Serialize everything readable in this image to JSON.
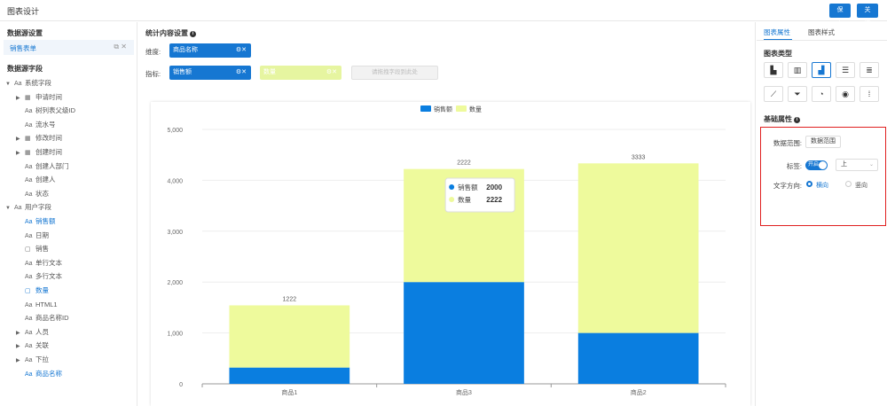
{
  "header": {
    "title": "图表设计",
    "save_label": "保存",
    "close_label": "关闭"
  },
  "left_panel": {
    "datasource_title": "数据源设置",
    "datasource_item": "销售表单",
    "datasource_ops": "⧉ ✕",
    "fields_title": "数据源字段",
    "tree": [
      {
        "label": "系统字段",
        "type": "Aa",
        "arrow": "▼",
        "level": 0,
        "blue": false
      },
      {
        "label": "申请时间",
        "type": "▦",
        "arrow": "▶",
        "level": 1,
        "blue": false
      },
      {
        "label": "树列表父级ID",
        "type": "Aa",
        "arrow": "",
        "level": 1,
        "blue": false
      },
      {
        "label": "流水号",
        "type": "Aa",
        "arrow": "",
        "level": 1,
        "blue": false
      },
      {
        "label": "修改时间",
        "type": "▦",
        "arrow": "▶",
        "level": 1,
        "blue": false
      },
      {
        "label": "创建时间",
        "type": "▦",
        "arrow": "▶",
        "level": 1,
        "blue": false
      },
      {
        "label": "创建人部门",
        "type": "Aa",
        "arrow": "",
        "level": 1,
        "blue": false
      },
      {
        "label": "创建人",
        "type": "Aa",
        "arrow": "",
        "level": 1,
        "blue": false
      },
      {
        "label": "状态",
        "type": "Aa",
        "arrow": "",
        "level": 1,
        "blue": false
      },
      {
        "label": "用户字段",
        "type": "Aa",
        "arrow": "▼",
        "level": 0,
        "blue": false
      },
      {
        "label": "销售额",
        "type": "Aa",
        "arrow": "",
        "level": 1,
        "blue": true
      },
      {
        "label": "日期",
        "type": "Aa",
        "arrow": "",
        "level": 1,
        "blue": false
      },
      {
        "label": "销售",
        "type": "▢",
        "arrow": "",
        "level": 1,
        "blue": false
      },
      {
        "label": "单行文本",
        "type": "Aa",
        "arrow": "",
        "level": 1,
        "blue": false
      },
      {
        "label": "多行文本",
        "type": "Aa",
        "arrow": "",
        "level": 1,
        "blue": false
      },
      {
        "label": "数量",
        "type": "▢",
        "arrow": "",
        "level": 1,
        "blue": true
      },
      {
        "label": "HTML1",
        "type": "Aa",
        "arrow": "",
        "level": 1,
        "blue": false
      },
      {
        "label": "商品名称ID",
        "type": "Aa",
        "arrow": "",
        "level": 1,
        "blue": false
      },
      {
        "label": "人员",
        "type": "Aa",
        "arrow": "▶",
        "level": 1,
        "blue": false
      },
      {
        "label": "关联",
        "type": "Aa",
        "arrow": "▶",
        "level": 1,
        "blue": false
      },
      {
        "label": "下拉",
        "type": "Aa",
        "arrow": "▶",
        "level": 1,
        "blue": false
      },
      {
        "label": "商品名称",
        "type": "Aa",
        "arrow": "",
        "level": 1,
        "blue": true
      }
    ]
  },
  "center": {
    "title": "统计内容设置",
    "dimension_label": "维度:",
    "dimension_chip": "商品名称",
    "metric_label": "指标:",
    "metric_chip_1": "销售额",
    "metric_chip_2": "数量",
    "chip_icons": "⚙✕",
    "metric_placeholder": "请拖拽字段到此处"
  },
  "chart_data": {
    "type": "bar",
    "stacked": true,
    "categories": [
      "商品1",
      "商品3",
      "商品2"
    ],
    "series": [
      {
        "name": "销售额",
        "color": "#0a7ee0",
        "values": [
          320,
          2000,
          1000
        ]
      },
      {
        "name": "数量",
        "color": "#eefa9c",
        "values": [
          1222,
          2222,
          3333
        ]
      }
    ],
    "yticks": [
      0,
      1000,
      2000,
      3000,
      4000,
      5000
    ],
    "ytick_labels": [
      "0",
      "1,000",
      "2,000",
      "3,000",
      "4,000",
      "5,000"
    ],
    "ylim": [
      0,
      5000
    ],
    "legend_position": "top-center",
    "grid": true,
    "tooltip": {
      "category_index": 1,
      "rows": [
        {
          "name": "销售额",
          "value": "2000"
        },
        {
          "name": "数量",
          "value": "2222"
        }
      ]
    }
  },
  "right_panel": {
    "tab_1": "图表属性",
    "tab_2": "图表样式",
    "chart_type_title": "图表类型",
    "types": [
      {
        "icon": "▙",
        "name": "bar-stacked-icon"
      },
      {
        "icon": "▥",
        "name": "bar-grouped-icon"
      },
      {
        "icon": "▟",
        "name": "bar-stacked-alt-icon",
        "active": true
      },
      {
        "icon": "☰",
        "name": "hbar-icon"
      },
      {
        "icon": "≣",
        "name": "hbar-stacked-icon"
      },
      {
        "icon": "⟋",
        "name": "line-chart-icon"
      },
      {
        "icon": "⏷",
        "name": "funnel-chart-icon"
      },
      {
        "icon": "◔",
        "name": "pie-chart-icon"
      },
      {
        "icon": "◉",
        "name": "gauge-chart-icon"
      },
      {
        "icon": "⁞",
        "name": "kpi-chart-icon"
      }
    ],
    "basic_title": "基础属性",
    "range_label": "数据范围:",
    "range_button": "数据范围",
    "tag_label": "标签:",
    "switch_text": "开启",
    "position_value": "上",
    "direction_label": "文字方向:",
    "dir_horizontal": "横向",
    "dir_vertical": "竖向"
  }
}
